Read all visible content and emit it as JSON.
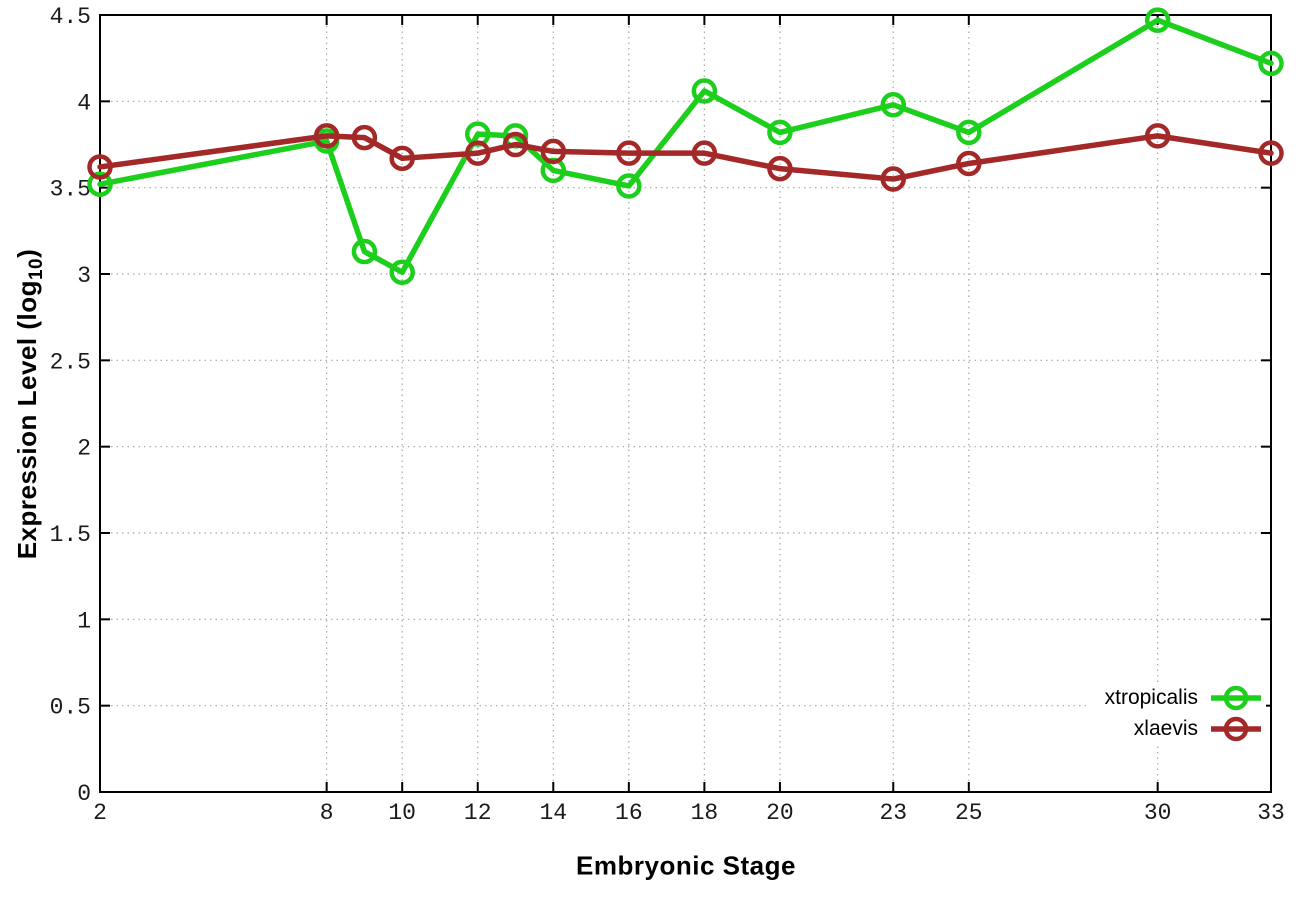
{
  "chart_data": {
    "type": "line",
    "title": "",
    "xlabel": "Embryonic Stage",
    "ylabel": {
      "prefix": "Expression Level (log",
      "sub": "10",
      "suffix": ")",
      "text": "Expression Level (log10)"
    },
    "xlim": [
      2,
      33
    ],
    "ylim": [
      0,
      4.5
    ],
    "x_ticks": {
      "values": [
        2,
        8,
        10,
        12,
        14,
        16,
        18,
        20,
        23,
        25,
        30,
        33
      ],
      "labels": [
        "2",
        "8",
        "10",
        "12",
        "14",
        "16",
        "18",
        "20",
        "23",
        "25",
        "30",
        "33"
      ]
    },
    "y_ticks": {
      "values": [
        0,
        0.5,
        1,
        1.5,
        2,
        2.5,
        3,
        3.5,
        4,
        4.5
      ],
      "labels": [
        "0",
        "0.5",
        "1",
        "1.5",
        "2",
        "2.5",
        "3",
        "3.5",
        "4",
        "4.5"
      ]
    },
    "grid": true,
    "legend_position": "inside-bottom-right",
    "background_color": "#ffffff",
    "grid_color": "#a8a8a8",
    "border_color": "#000000",
    "series": [
      {
        "name": "xtropicalis",
        "color": "#1dcf1d",
        "marker": "open-circle",
        "x": [
          2,
          8,
          9,
          10,
          12,
          13,
          14,
          16,
          18,
          20,
          23,
          25,
          30,
          33
        ],
        "y": [
          3.52,
          3.77,
          3.13,
          3.01,
          3.81,
          3.8,
          3.6,
          3.51,
          4.06,
          3.82,
          3.98,
          3.82,
          4.47,
          4.22
        ]
      },
      {
        "name": "xlaevis",
        "color": "#a32928",
        "marker": "open-circle",
        "x": [
          2,
          8,
          9,
          10,
          12,
          13,
          14,
          16,
          18,
          20,
          23,
          25,
          30,
          33
        ],
        "y": [
          3.62,
          3.8,
          3.79,
          3.67,
          3.7,
          3.75,
          3.71,
          3.7,
          3.7,
          3.61,
          3.55,
          3.64,
          3.8,
          3.7
        ]
      }
    ]
  }
}
